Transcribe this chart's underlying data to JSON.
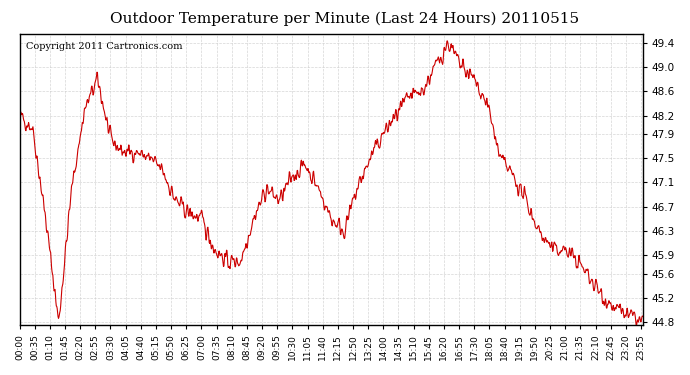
{
  "title": "Outdoor Temperature per Minute (Last 24 Hours) 20110515",
  "copyright": "Copyright 2011 Cartronics.com",
  "line_color": "#cc0000",
  "bg_color": "#ffffff",
  "plot_bg_color": "#ffffff",
  "grid_color": "#cccccc",
  "yticks": [
    44.8,
    45.2,
    45.6,
    45.9,
    46.3,
    46.7,
    47.1,
    47.5,
    47.9,
    48.2,
    48.6,
    49.0,
    49.4
  ],
  "ymin": 44.75,
  "ymax": 49.55,
  "xtick_labels": [
    "00:00",
    "00:35",
    "01:10",
    "01:45",
    "02:20",
    "02:55",
    "03:30",
    "04:05",
    "04:40",
    "05:15",
    "05:50",
    "06:25",
    "07:00",
    "07:35",
    "08:10",
    "08:45",
    "09:20",
    "09:55",
    "10:30",
    "11:05",
    "11:40",
    "12:15",
    "12:50",
    "13:25",
    "14:00",
    "14:35",
    "15:10",
    "15:45",
    "16:20",
    "16:55",
    "17:30",
    "18:05",
    "18:40",
    "19:15",
    "19:50",
    "20:25",
    "21:00",
    "21:35",
    "22:10",
    "22:45",
    "23:20",
    "23:55"
  ]
}
